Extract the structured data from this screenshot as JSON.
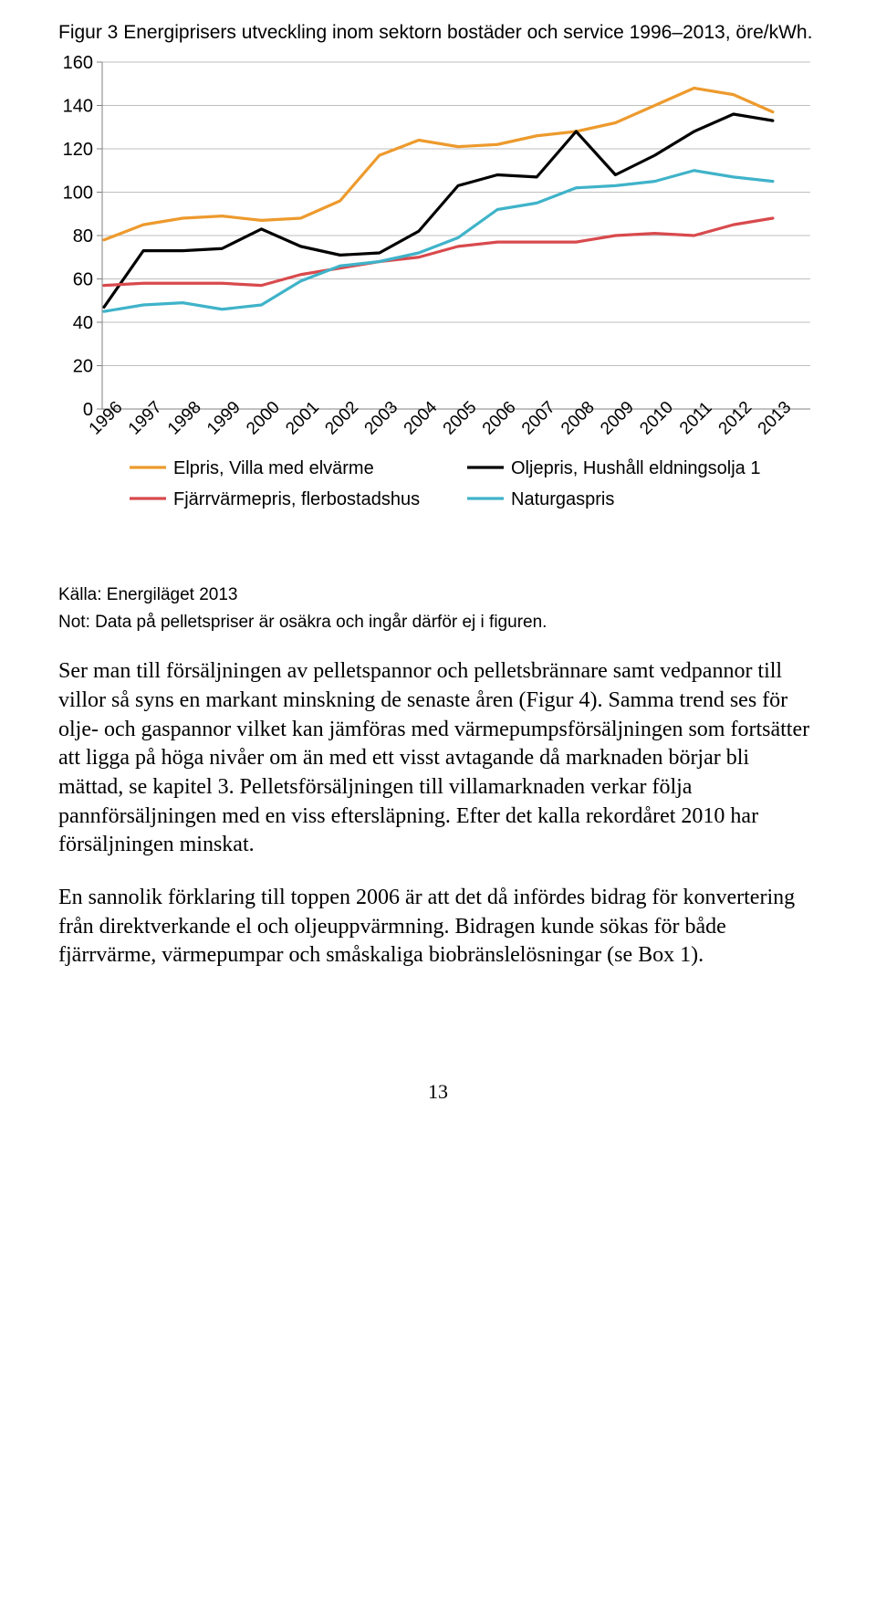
{
  "figure": {
    "title": "Figur 3 Energiprisers utveckling inom sektorn bostäder och service 1996–2013, öre/kWh.",
    "source": "Källa: Energiläget 2013",
    "note": "Not: Data på pelletspriser är osäkra och ingår därför ej i figuren.",
    "chart": {
      "type": "line",
      "background_color": "#ffffff",
      "grid_color": "#bfbfbf",
      "axis_color": "#808080",
      "text_color": "#000000",
      "ylim": [
        0,
        160
      ],
      "ytick_step": 20,
      "yticks": [
        0,
        20,
        40,
        60,
        80,
        100,
        120,
        140,
        160
      ],
      "x_categories": [
        "1996",
        "1997",
        "1998",
        "1999",
        "2000",
        "2001",
        "2002",
        "2003",
        "2004",
        "2005",
        "2006",
        "2007",
        "2008",
        "2009",
        "2010",
        "2011",
        "2012",
        "2013"
      ],
      "line_width": 3.2,
      "series": [
        {
          "name": "Elpris, Villa med elvärme",
          "color": "#ed9a2d",
          "values": [
            78,
            85,
            88,
            89,
            87,
            88,
            96,
            117,
            124,
            121,
            122,
            126,
            128,
            132,
            140,
            148,
            145,
            137
          ]
        },
        {
          "name": "Oljepris, Hushåll eldningsolja 1",
          "color": "#000000",
          "values": [
            47,
            73,
            73,
            74,
            83,
            75,
            71,
            72,
            82,
            103,
            108,
            107,
            128,
            108,
            117,
            128,
            136,
            133
          ]
        },
        {
          "name": "Fjärrvärmepris, flerbostadshus",
          "color": "#d84a4d",
          "values": [
            57,
            58,
            58,
            58,
            57,
            62,
            65,
            68,
            70,
            75,
            77,
            77,
            77,
            80,
            81,
            80,
            85,
            88
          ]
        },
        {
          "name": "Naturgaspris",
          "color": "#3fb3c9",
          "values": [
            45,
            48,
            49,
            46,
            48,
            59,
            66,
            68,
            72,
            79,
            92,
            95,
            102,
            103,
            105,
            110,
            107,
            105
          ]
        }
      ],
      "legend": {
        "rows": [
          [
            "Elpris, Villa med elvärme",
            "Oljepris, Hushåll eldningsolja 1"
          ],
          [
            "Fjärrvärmepris, flerbostadshus",
            "Naturgaspris"
          ]
        ],
        "fontsize": 20
      },
      "label_fontsize": 20
    }
  },
  "paragraphs": [
    "Ser man till försäljningen av pelletspannor och pelletsbrännare samt vedpannor till villor så syns en markant minskning de senaste åren (Figur 4). Samma trend ses för olje- och gaspannor vilket kan jämföras med värmepumpsförsäljningen som fortsätter att ligga på höga nivåer om än med ett visst avtagande då marknaden börjar bli mättad, se kapitel 3. Pelletsförsäljningen till villamarknaden verkar följa pannförsäljningen med en viss eftersläpning. Efter det kalla rekordåret 2010 har försäljningen minskat.",
    "En sannolik förklaring till toppen 2006 är att det då infördes bidrag för konvertering från direktverkande el och oljeuppvärmning. Bidragen kunde sökas för både fjärrvärme, värmepumpar och småskaliga biobränslelösningar (se Box 1)."
  ],
  "page_number": "13"
}
